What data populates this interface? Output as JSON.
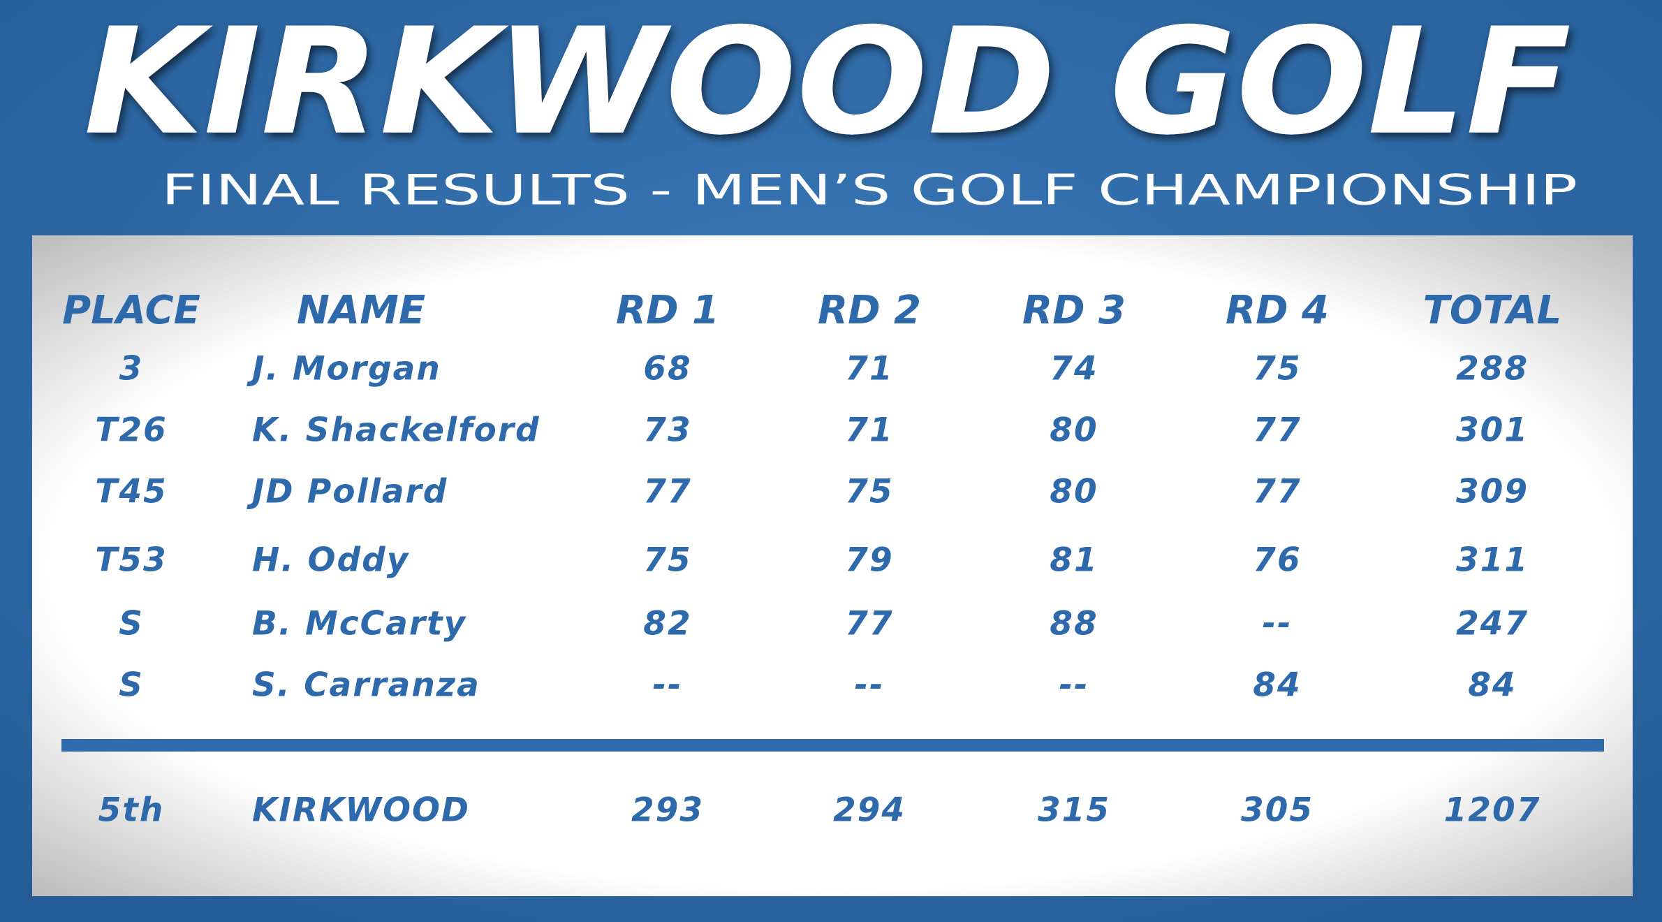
{
  "header": {
    "title": "KIRKWOOD GOLF",
    "subtitle": "FINAL RESULTS - MEN’S GOLF CHAMPIONSHIP"
  },
  "table": {
    "headers": [
      "PLACE",
      "NAME",
      "RD 1",
      "RD 2",
      "RD 3",
      "RD 4",
      "TOTAL"
    ],
    "rows": [
      [
        "3",
        "J. Morgan",
        "68",
        "71",
        "74",
        "75",
        "288"
      ],
      [
        "T26",
        "K. Shackelford",
        "73",
        "71",
        "80",
        "77",
        "301"
      ],
      [
        "T45",
        "JD Pollard",
        "77",
        "75",
        "80",
        "77",
        "309"
      ],
      [
        "T53",
        "H. Oddy",
        "75",
        "79",
        "81",
        "76",
        "311"
      ],
      [
        "S",
        "B. McCarty",
        "82",
        "77",
        "88",
        "--",
        "247"
      ],
      [
        "S",
        "S. Carranza",
        "--",
        "--",
        "--",
        "84",
        "84"
      ]
    ],
    "footer": [
      "5th",
      "KIRKWOOD",
      "293",
      "294",
      "315",
      "305",
      "1207"
    ]
  }
}
